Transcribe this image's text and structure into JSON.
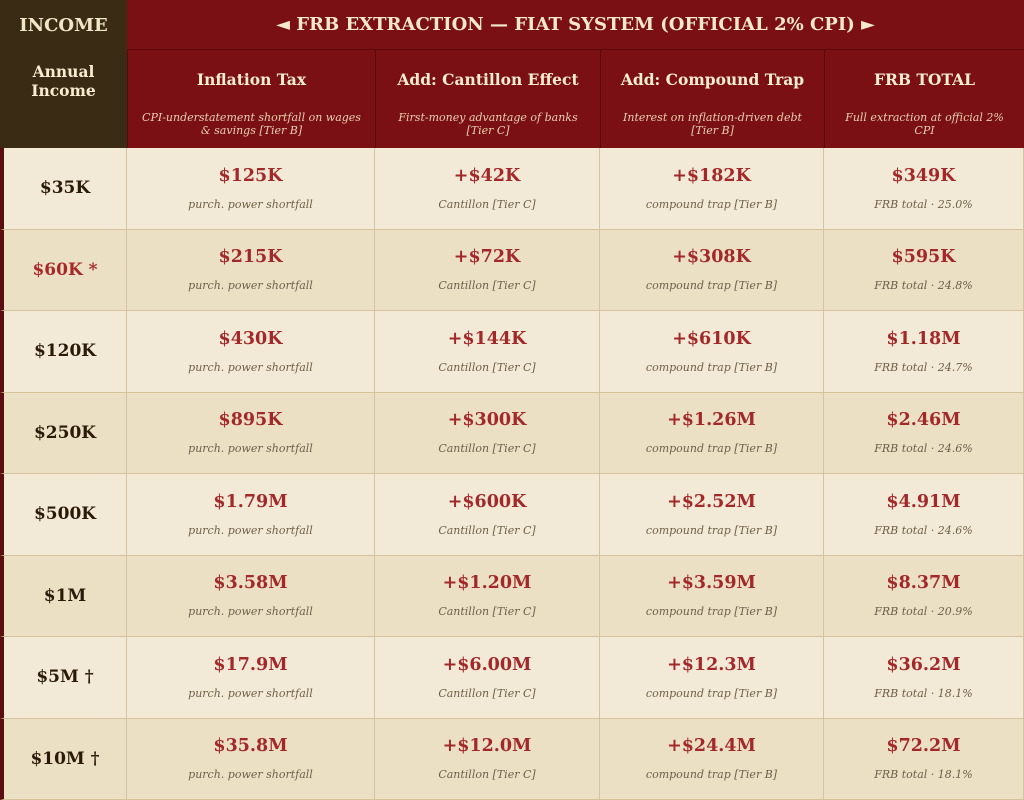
{
  "header": {
    "corner": "INCOME",
    "title": "◄ FRB EXTRACTION — FIAT SYSTEM (OFFICIAL 2% CPI) ►"
  },
  "columns": [
    {
      "title": "Annual Income"
    },
    {
      "title": "Inflation Tax",
      "subtitle": "CPI-understatement shortfall on wages & savings [Tier B]"
    },
    {
      "title": "Add: Cantillon Effect",
      "subtitle": "First-money advantage of banks [Tier C]"
    },
    {
      "title": "Add: Compound Trap",
      "subtitle": "Interest on inflation-driven debt [Tier B]"
    },
    {
      "title": "FRB TOTAL",
      "subtitle": "Full extraction at official 2% CPI"
    }
  ],
  "rows": [
    {
      "income": "$35K",
      "cells": [
        {
          "value": "$125K",
          "note": "purch. power shortfall"
        },
        {
          "value": "+$42K",
          "note": "Cantillon [Tier C]"
        },
        {
          "value": "+$182K",
          "note": "compound trap [Tier B]"
        },
        {
          "value": "$349K",
          "note": "FRB total · 25.0%"
        }
      ]
    },
    {
      "income": "$60K *",
      "highlight": true,
      "cells": [
        {
          "value": "$215K",
          "note": "purch. power shortfall"
        },
        {
          "value": "+$72K",
          "note": "Cantillon [Tier C]"
        },
        {
          "value": "+$308K",
          "note": "compound trap [Tier B]"
        },
        {
          "value": "$595K",
          "note": "FRB total · 24.8%"
        }
      ]
    },
    {
      "income": "$120K",
      "cells": [
        {
          "value": "$430K",
          "note": "purch. power shortfall"
        },
        {
          "value": "+$144K",
          "note": "Cantillon [Tier C]"
        },
        {
          "value": "+$610K",
          "note": "compound trap [Tier B]"
        },
        {
          "value": "$1.18M",
          "note": "FRB total · 24.7%"
        }
      ]
    },
    {
      "income": "$250K",
      "cells": [
        {
          "value": "$895K",
          "note": "purch. power shortfall"
        },
        {
          "value": "+$300K",
          "note": "Cantillon [Tier C]"
        },
        {
          "value": "+$1.26M",
          "note": "compound trap [Tier B]"
        },
        {
          "value": "$2.46M",
          "note": "FRB total · 24.6%"
        }
      ]
    },
    {
      "income": "$500K",
      "cells": [
        {
          "value": "$1.79M",
          "note": "purch. power shortfall"
        },
        {
          "value": "+$600K",
          "note": "Cantillon [Tier C]"
        },
        {
          "value": "+$2.52M",
          "note": "compound trap [Tier B]"
        },
        {
          "value": "$4.91M",
          "note": "FRB total · 24.6%"
        }
      ]
    },
    {
      "income": "$1M",
      "cells": [
        {
          "value": "$3.58M",
          "note": "purch. power shortfall"
        },
        {
          "value": "+$1.20M",
          "note": "Cantillon [Tier C]"
        },
        {
          "value": "+$3.59M",
          "note": "compound trap [Tier B]"
        },
        {
          "value": "$8.37M",
          "note": "FRB total · 20.9%"
        }
      ]
    },
    {
      "income": "$5M †",
      "cells": [
        {
          "value": "$17.9M",
          "note": "purch. power shortfall"
        },
        {
          "value": "+$6.00M",
          "note": "Cantillon [Tier C]"
        },
        {
          "value": "+$12.3M",
          "note": "compound trap [Tier B]"
        },
        {
          "value": "$36.2M",
          "note": "FRB total · 18.1%"
        }
      ]
    },
    {
      "income": "$10M †",
      "cells": [
        {
          "value": "$35.8M",
          "note": "purch. power shortfall"
        },
        {
          "value": "+$12.0M",
          "note": "Cantillon [Tier C]"
        },
        {
          "value": "+$24.4M",
          "note": "compound trap [Tier B]"
        },
        {
          "value": "$72.2M",
          "note": "FRB total · 18.1%"
        }
      ]
    }
  ]
}
